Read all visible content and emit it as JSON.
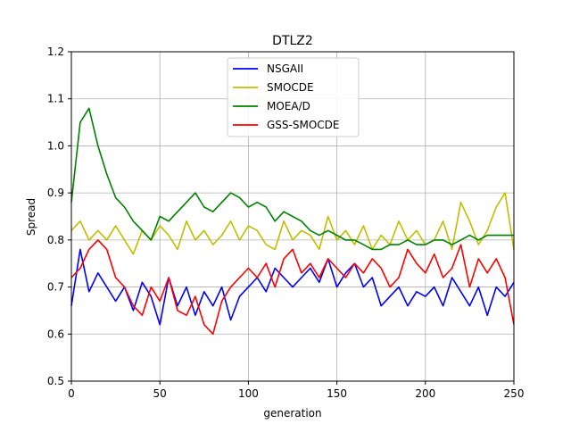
{
  "chart_data": {
    "type": "line",
    "title": "DTLZ2",
    "xlabel": "generation",
    "ylabel": "Spread",
    "xlim": [
      0,
      250
    ],
    "ylim": [
      0.5,
      1.2
    ],
    "xticks": [
      0,
      50,
      100,
      150,
      200,
      250
    ],
    "yticks": [
      0.5,
      0.6,
      0.7,
      0.8,
      0.9,
      1.0,
      1.1,
      1.2
    ],
    "xtick_labels": [
      "0",
      "50",
      "100",
      "150",
      "200",
      "250"
    ],
    "ytick_labels": [
      "0.5",
      "0.6",
      "0.7",
      "0.8",
      "0.9",
      "1.0",
      "1.1",
      "1.2"
    ],
    "grid": true,
    "legend_position": "top-center",
    "x": [
      0,
      5,
      10,
      15,
      20,
      25,
      30,
      35,
      40,
      45,
      50,
      55,
      60,
      65,
      70,
      75,
      80,
      85,
      90,
      95,
      100,
      105,
      110,
      115,
      120,
      125,
      130,
      135,
      140,
      145,
      150,
      155,
      160,
      165,
      170,
      175,
      180,
      185,
      190,
      195,
      200,
      205,
      210,
      215,
      220,
      225,
      230,
      235,
      240,
      245,
      250
    ],
    "series": [
      {
        "name": "NSGAII",
        "color": "#0000ff",
        "values": [
          0.66,
          0.78,
          0.69,
          0.73,
          0.7,
          0.67,
          0.7,
          0.65,
          0.71,
          0.68,
          0.62,
          0.72,
          0.66,
          0.7,
          0.64,
          0.69,
          0.66,
          0.7,
          0.63,
          0.68,
          0.7,
          0.72,
          0.69,
          0.74,
          0.72,
          0.7,
          0.72,
          0.74,
          0.71,
          0.76,
          0.7,
          0.73,
          0.75,
          0.7,
          0.72,
          0.66,
          0.68,
          0.7,
          0.66,
          0.69,
          0.68,
          0.7,
          0.66,
          0.72,
          0.69,
          0.66,
          0.7,
          0.64,
          0.7,
          0.68,
          0.71
        ]
      },
      {
        "name": "SMOCDE",
        "color": "#bfbf00",
        "values": [
          0.82,
          0.84,
          0.8,
          0.82,
          0.8,
          0.83,
          0.8,
          0.77,
          0.82,
          0.8,
          0.83,
          0.81,
          0.78,
          0.84,
          0.8,
          0.82,
          0.79,
          0.81,
          0.84,
          0.8,
          0.83,
          0.82,
          0.79,
          0.78,
          0.84,
          0.8,
          0.82,
          0.81,
          0.78,
          0.85,
          0.8,
          0.82,
          0.79,
          0.83,
          0.78,
          0.81,
          0.79,
          0.84,
          0.8,
          0.82,
          0.79,
          0.8,
          0.84,
          0.78,
          0.88,
          0.84,
          0.79,
          0.82,
          0.87,
          0.9,
          0.78
        ]
      },
      {
        "name": "MOEA/D",
        "color": "#008000",
        "values": [
          0.88,
          1.05,
          1.08,
          1.0,
          0.94,
          0.89,
          0.87,
          0.84,
          0.82,
          0.8,
          0.85,
          0.84,
          0.86,
          0.88,
          0.9,
          0.87,
          0.86,
          0.88,
          0.9,
          0.89,
          0.87,
          0.88,
          0.87,
          0.84,
          0.86,
          0.85,
          0.84,
          0.82,
          0.81,
          0.82,
          0.81,
          0.8,
          0.8,
          0.79,
          0.78,
          0.78,
          0.79,
          0.79,
          0.8,
          0.79,
          0.79,
          0.8,
          0.8,
          0.79,
          0.8,
          0.81,
          0.8,
          0.81,
          0.81,
          0.81,
          0.81
        ]
      },
      {
        "name": "GSS-SMOCDE",
        "color": "#ff0000",
        "values": [
          0.72,
          0.74,
          0.78,
          0.8,
          0.78,
          0.72,
          0.7,
          0.66,
          0.64,
          0.7,
          0.67,
          0.72,
          0.65,
          0.64,
          0.68,
          0.62,
          0.6,
          0.67,
          0.7,
          0.72,
          0.74,
          0.72,
          0.75,
          0.7,
          0.76,
          0.78,
          0.73,
          0.75,
          0.72,
          0.76,
          0.74,
          0.72,
          0.75,
          0.73,
          0.76,
          0.74,
          0.7,
          0.72,
          0.78,
          0.75,
          0.73,
          0.77,
          0.72,
          0.74,
          0.79,
          0.7,
          0.76,
          0.73,
          0.76,
          0.72,
          0.62
        ]
      }
    ]
  }
}
